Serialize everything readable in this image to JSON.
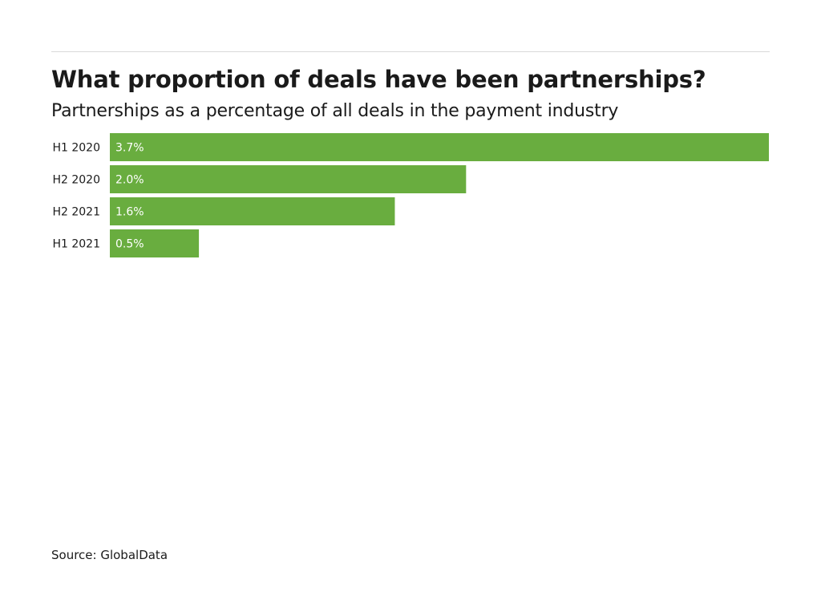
{
  "chart_data": {
    "type": "bar",
    "orientation": "horizontal",
    "title": "What proportion of deals have been partnerships?",
    "subtitle": "Partnerships as a percentage of all deals in the payment industry",
    "categories": [
      "H1 2020",
      "H2 2020",
      "H2 2021",
      "H1 2021"
    ],
    "values": [
      3.7,
      2.0,
      1.6,
      0.5
    ],
    "value_labels": [
      "3.7%",
      "2.0%",
      "1.6%",
      "0.5%"
    ],
    "unit": "%",
    "xlim": [
      0,
      3.7
    ],
    "grid": false,
    "legend": "none",
    "bar_color": "#69ad3f"
  },
  "source": "Source: GlobalData"
}
